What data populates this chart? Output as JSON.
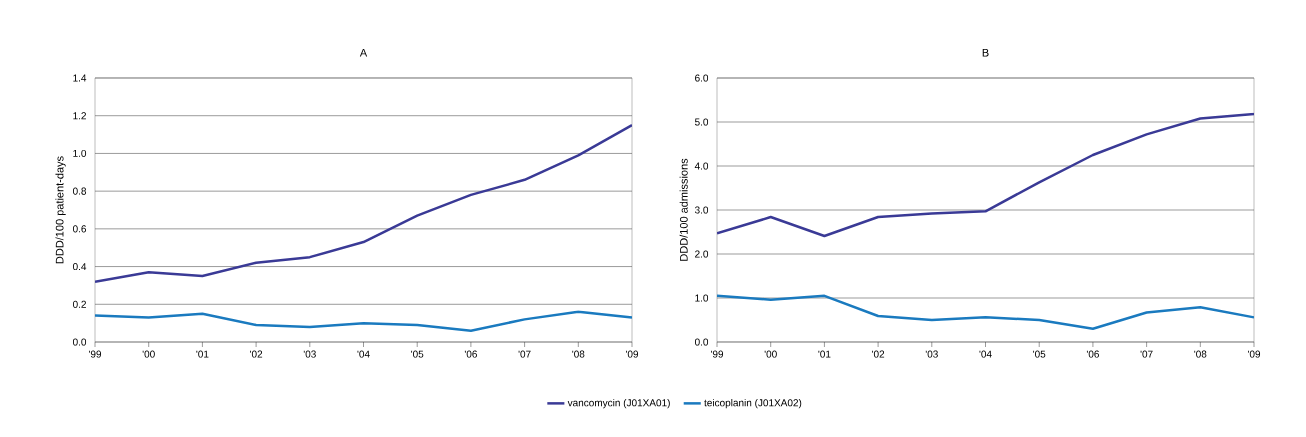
{
  "chart_data": [
    {
      "type": "line",
      "title": "A",
      "ylabel": "DDD/100 patient-days",
      "categories": [
        "'99",
        "'00",
        "'01",
        "'02",
        "'03",
        "'04",
        "'05",
        "'06",
        "'07",
        "'08",
        "'09"
      ],
      "series": [
        {
          "name": "vancomycin (J01XA01)",
          "color": "#3a3a96",
          "values": [
            0.32,
            0.37,
            0.35,
            0.42,
            0.45,
            0.53,
            0.67,
            0.78,
            0.86,
            0.99,
            1.15
          ]
        },
        {
          "name": "teicoplanin (J01XA02)",
          "color": "#1a7abf",
          "values": [
            0.14,
            0.13,
            0.15,
            0.09,
            0.08,
            0.1,
            0.09,
            0.06,
            0.12,
            0.16,
            0.13
          ]
        }
      ],
      "ylim": [
        0,
        1.4
      ],
      "yticks": [
        {
          "value": 0,
          "label": "0.0"
        },
        {
          "value": 0.2,
          "label": "0.2"
        },
        {
          "value": 0.4,
          "label": "0.4"
        },
        {
          "value": 0.6,
          "label": "0.6"
        },
        {
          "value": 0.8,
          "label": "0.8"
        },
        {
          "value": 1.0,
          "label": "1.0"
        },
        {
          "value": 1.2,
          "label": "1.2"
        },
        {
          "value": 1.4,
          "label": "1.4"
        }
      ],
      "grid": "y",
      "legend": "bottom",
      "line_style": "solid",
      "marker": "none"
    },
    {
      "type": "line",
      "title": "B",
      "ylabel": "DDD/100 admissions",
      "categories": [
        "'99",
        "'00",
        "'01",
        "'02",
        "'03",
        "'04",
        "'05",
        "'06",
        "'07",
        "'08",
        "'09"
      ],
      "series": [
        {
          "color": "#3a3a96",
          "values": [
            2.47,
            2.84,
            2.41,
            2.84,
            2.92,
            2.97,
            3.63,
            4.25,
            4.72,
            5.08,
            5.18
          ]
        },
        {
          "color": "#1a7abf",
          "values": [
            1.05,
            0.96,
            1.05,
            0.59,
            0.5,
            0.56,
            0.5,
            0.3,
            0.67,
            0.79,
            0.56
          ]
        }
      ],
      "ylim": [
        0,
        6.0
      ],
      "yticks": [
        {
          "value": 0,
          "label": "0.0"
        },
        {
          "value": 1.0,
          "label": "1.0"
        },
        {
          "value": 2.0,
          "label": "2.0"
        },
        {
          "value": 3.0,
          "label": "3.0"
        },
        {
          "value": 4.0,
          "label": "4.0"
        },
        {
          "value": 5.0,
          "label": "5.0"
        },
        {
          "value": 6.0,
          "label": "6.0"
        }
      ],
      "grid": "y",
      "legend": false,
      "line_style": "solid",
      "marker": "none"
    }
  ]
}
